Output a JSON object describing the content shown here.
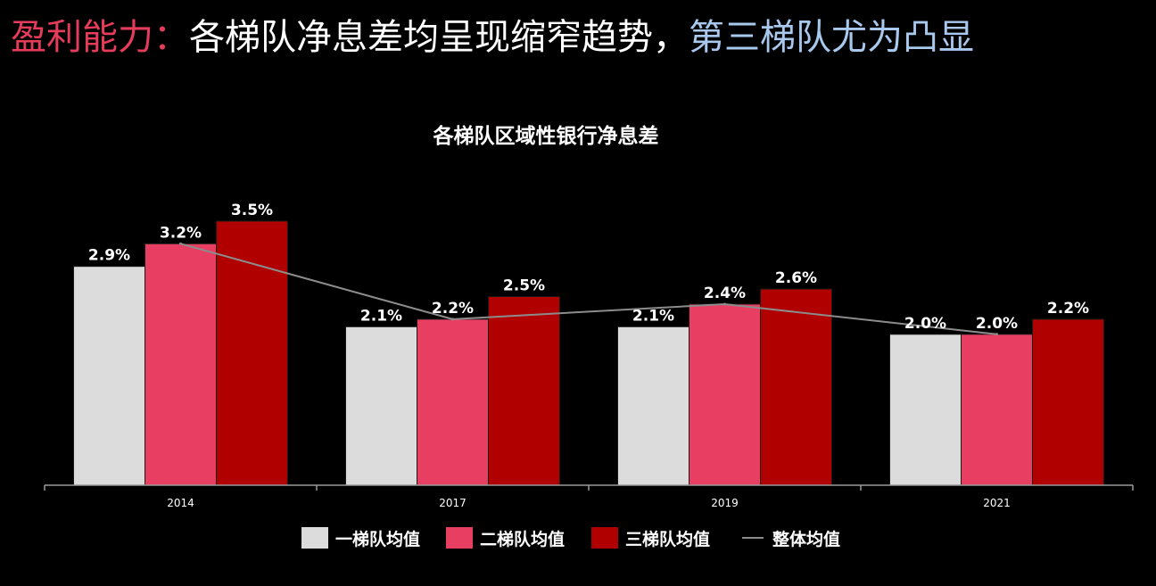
{
  "headline": {
    "keyword": "盈利能力：",
    "main": "各梯队净息差均呈现缩窄趋势，",
    "highlight": "第三梯队尤为凸显"
  },
  "colors": {
    "keyword": "#e63c5c",
    "highlight": "#a9c8ee",
    "tier1": "#dcdcdc",
    "tier2": "#e83e62",
    "tier3": "#b00000",
    "overall": "#8c8c8c"
  },
  "chart_data": {
    "type": "bar",
    "title": "各梯队区域性银行净息差",
    "xlabel": "",
    "ylabel": "",
    "categories": [
      "2014",
      "2017",
      "2019",
      "2021"
    ],
    "series": [
      {
        "name": "一梯队均值",
        "type": "bar",
        "values": [
          2.9,
          2.1,
          2.1,
          2.0
        ],
        "labels": [
          "2.9%",
          "2.1%",
          "2.1%",
          "2.0%"
        ]
      },
      {
        "name": "二梯队均值",
        "type": "bar",
        "values": [
          3.2,
          2.2,
          2.4,
          2.0
        ],
        "labels": [
          "3.2%",
          "2.2%",
          "2.4%",
          "2.0%"
        ]
      },
      {
        "name": "三梯队均值",
        "type": "bar",
        "values": [
          3.5,
          2.5,
          2.6,
          2.2
        ],
        "labels": [
          "3.5%",
          "2.5%",
          "2.6%",
          "2.2%"
        ]
      },
      {
        "name": "整体均值",
        "type": "line",
        "values": [
          3.2,
          2.2,
          2.4,
          2.0
        ]
      }
    ],
    "ylim": [
      0,
      4
    ],
    "grid": false,
    "legend_position": "bottom"
  }
}
